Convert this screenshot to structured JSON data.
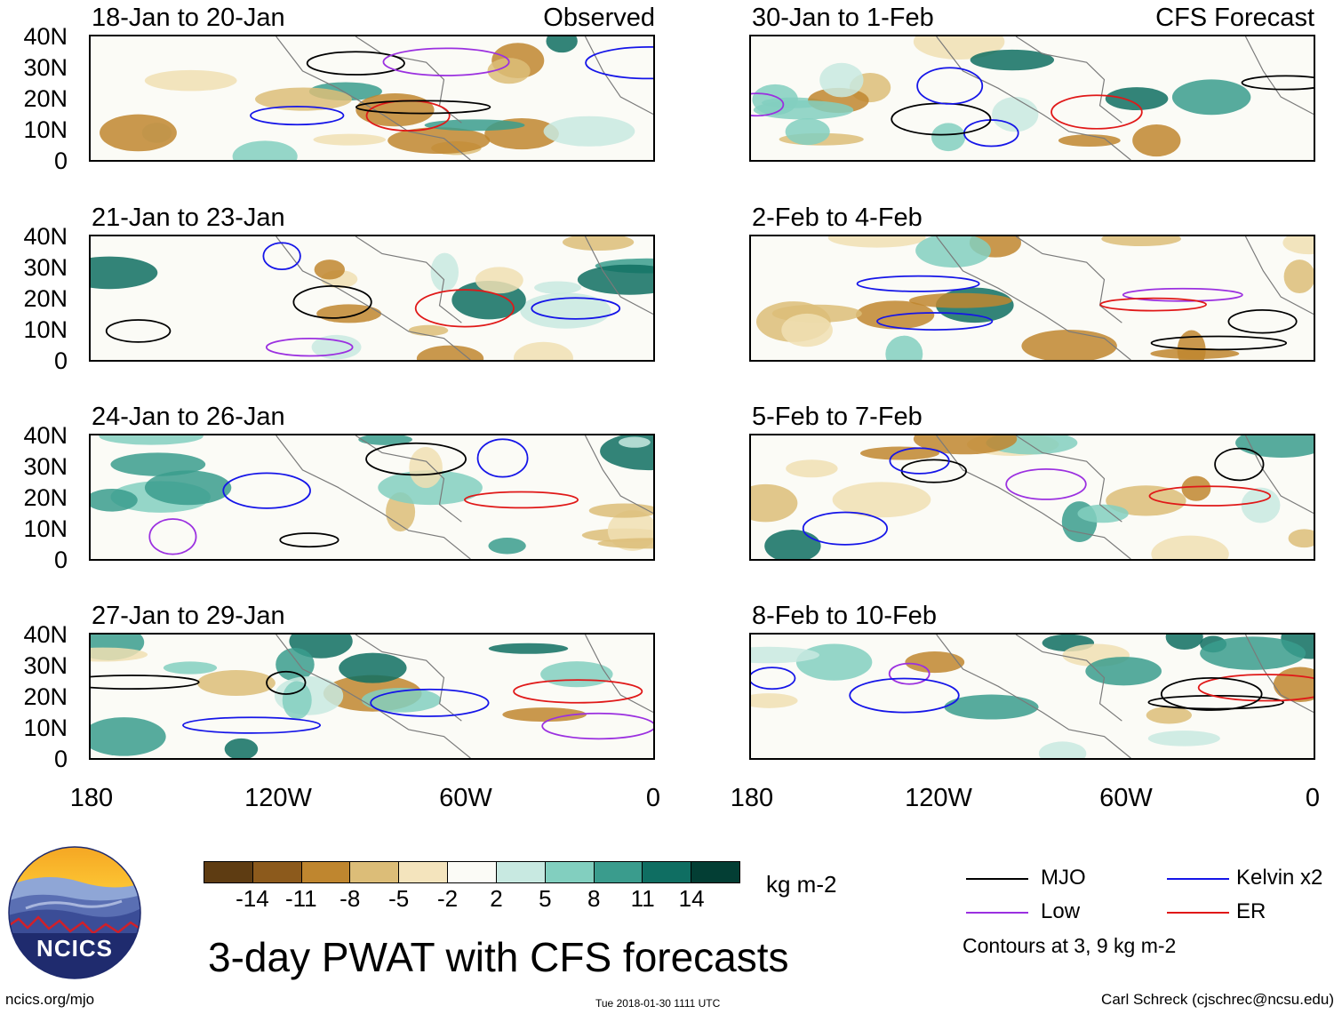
{
  "left_header_right": "Observed",
  "right_header_right": "CFS Forecast",
  "panels_left": [
    {
      "title": "18-Jan to 20-Jan"
    },
    {
      "title": "21-Jan to 23-Jan"
    },
    {
      "title": "24-Jan to 26-Jan"
    },
    {
      "title": "27-Jan to 29-Jan"
    }
  ],
  "panels_right": [
    {
      "title": "30-Jan to 1-Feb"
    },
    {
      "title": "2-Feb to 4-Feb"
    },
    {
      "title": "5-Feb to 7-Feb"
    },
    {
      "title": "8-Feb to 10-Feb"
    }
  ],
  "lat_ticks": [
    "40N",
    "30N",
    "20N",
    "10N",
    "0"
  ],
  "lon_ticks": [
    "180",
    "120W",
    "60W",
    "0"
  ],
  "colorbar": {
    "colors": [
      "#5e3c12",
      "#8c5a1c",
      "#bf862f",
      "#dcbd78",
      "#f4e4bd",
      "#fbfbf6",
      "#c8e9e1",
      "#82cfbf",
      "#3a9c8d",
      "#0f6e62",
      "#033e34"
    ],
    "ticks": [
      "-14",
      "-11",
      "-8",
      "-5",
      "-2",
      "2",
      "5",
      "8",
      "11",
      "14"
    ],
    "units": "kg m-2"
  },
  "title": "3-day PWAT with CFS forecasts",
  "legend": [
    {
      "label": "MJO",
      "color": "#000000"
    },
    {
      "label": "Kelvin x2",
      "color": "#1515e8"
    },
    {
      "label": "Low",
      "color": "#9b30e0"
    },
    {
      "label": "ER",
      "color": "#e01818"
    }
  ],
  "contour_note": "Contours at 3, 9 kg m-2",
  "logo_text": "NCICS",
  "footer": {
    "left": "ncics.org/mjo",
    "center": "Tue 2018-01-30 1111 UTC",
    "right": "Carl Schreck (cjschrec@ncsu.edu)"
  }
}
